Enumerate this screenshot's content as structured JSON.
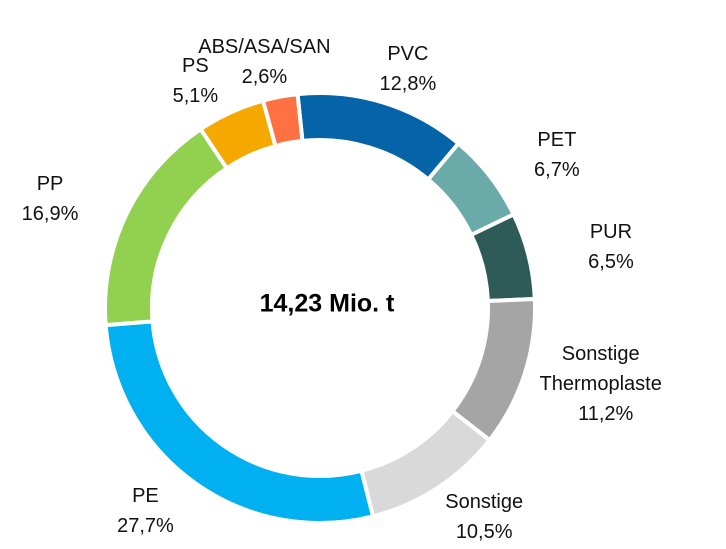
{
  "chart_data": {
    "type": "donut",
    "center_text": "14,23 Mio. t",
    "categories": [
      "PVC",
      "PET",
      "PUR",
      "Sonstige Thermoplaste",
      "Sonstige",
      "PE",
      "PP",
      "PS",
      "ABS/ASA/SAN"
    ],
    "values": [
      12.8,
      6.7,
      6.5,
      11.2,
      10.5,
      27.7,
      16.9,
      5.1,
      2.6
    ],
    "value_labels": [
      "12,8%",
      "6,7%",
      "6,5%",
      "11,2%",
      "10,5%",
      "27,7%",
      "16,9%",
      "5,1%",
      "2,6%"
    ],
    "colors": [
      "#0563a8",
      "#6aabaa",
      "#2e5a58",
      "#a5a5a5",
      "#d9d9d9",
      "#00b0f0",
      "#92d050",
      "#f5a800",
      "#ff7043"
    ]
  }
}
